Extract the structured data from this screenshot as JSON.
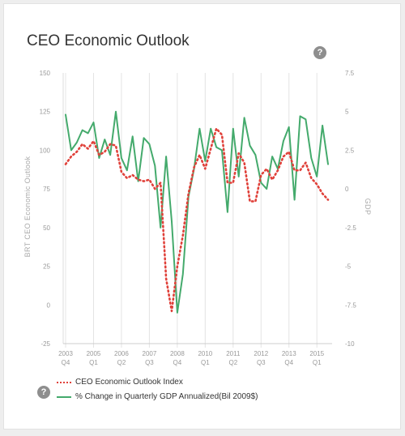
{
  "title": "CEO Economic Outlook",
  "help_label": "?",
  "chart_data": {
    "type": "line",
    "x": [
      "2003Q4",
      "2004Q1",
      "2004Q2",
      "2004Q3",
      "2004Q4",
      "2005Q1",
      "2005Q2",
      "2005Q3",
      "2005Q4",
      "2006Q1",
      "2006Q2",
      "2006Q3",
      "2006Q4",
      "2007Q1",
      "2007Q2",
      "2007Q3",
      "2007Q4",
      "2008Q1",
      "2008Q2",
      "2008Q3",
      "2008Q4",
      "2009Q1",
      "2009Q2",
      "2009Q3",
      "2009Q4",
      "2010Q1",
      "2010Q2",
      "2010Q3",
      "2010Q4",
      "2011Q1",
      "2011Q2",
      "2011Q3",
      "2011Q4",
      "2012Q1",
      "2012Q2",
      "2012Q3",
      "2012Q4",
      "2013Q1",
      "2013Q2",
      "2013Q3",
      "2013Q4",
      "2014Q1",
      "2014Q2",
      "2014Q3",
      "2014Q4",
      "2015Q1",
      "2015Q2",
      "2015Q3"
    ],
    "series": [
      {
        "name": "CEO Economic Outlook Index",
        "axis": "left",
        "color": "#e0413a",
        "style": "dotted",
        "values": [
          91,
          96,
          99,
          104,
          101,
          106,
          97,
          99,
          104,
          103,
          86,
          82,
          84,
          81,
          80,
          81,
          75,
          79,
          17,
          -4,
          25,
          45,
          72,
          89,
          97,
          88,
          101,
          114,
          110,
          79,
          79,
          98,
          92,
          67,
          67,
          84,
          88,
          81,
          87,
          96,
          99,
          87,
          87,
          92,
          82,
          78,
          72,
          68
        ]
      },
      {
        "name": "% Change in Quarterly GDP Annualized(Bil 2009$)",
        "axis": "right",
        "color": "#44aa6c",
        "style": "solid",
        "values": [
          4.8,
          2.5,
          3.0,
          3.8,
          3.6,
          4.3,
          2.0,
          3.2,
          2.2,
          5.0,
          2.0,
          1.2,
          3.4,
          0.5,
          3.3,
          2.9,
          1.5,
          -2.5,
          2.1,
          -2.1,
          -8.0,
          -5.5,
          -0.5,
          1.3,
          3.9,
          1.8,
          3.9,
          2.7,
          2.5,
          -1.5,
          3.9,
          0.8,
          4.6,
          2.8,
          2.2,
          0.4,
          0,
          2.1,
          1.3,
          3.1,
          4.0,
          -0.7,
          4.7,
          4.5,
          2.0,
          0.8,
          4.1,
          1.6
        ]
      }
    ],
    "x_ticks": [
      {
        "year": "2003",
        "quarter": "Q4"
      },
      {
        "year": "2005",
        "quarter": "Q1"
      },
      {
        "year": "2006",
        "quarter": "Q2"
      },
      {
        "year": "2007",
        "quarter": "Q3"
      },
      {
        "year": "2008",
        "quarter": "Q4"
      },
      {
        "year": "2010",
        "quarter": "Q1"
      },
      {
        "year": "2011",
        "quarter": "Q2"
      },
      {
        "year": "2012",
        "quarter": "Q3"
      },
      {
        "year": "2013",
        "quarter": "Q4"
      },
      {
        "year": "2015",
        "quarter": "Q1"
      }
    ],
    "y_left": {
      "label": "BRT CEO Economic Outlook",
      "min": -25,
      "max": 150,
      "ticks": [
        "150",
        "125",
        "100",
        "75",
        "50",
        "25",
        "0",
        "-25"
      ]
    },
    "y_right": {
      "label": "GDP",
      "min": -10,
      "max": 7.5,
      "ticks": [
        "7.5",
        "5",
        "2.5",
        "0",
        "-2.5",
        "-5",
        "-7.5",
        "-10"
      ]
    },
    "grid": "vertical",
    "legend_position": "bottom-left"
  }
}
